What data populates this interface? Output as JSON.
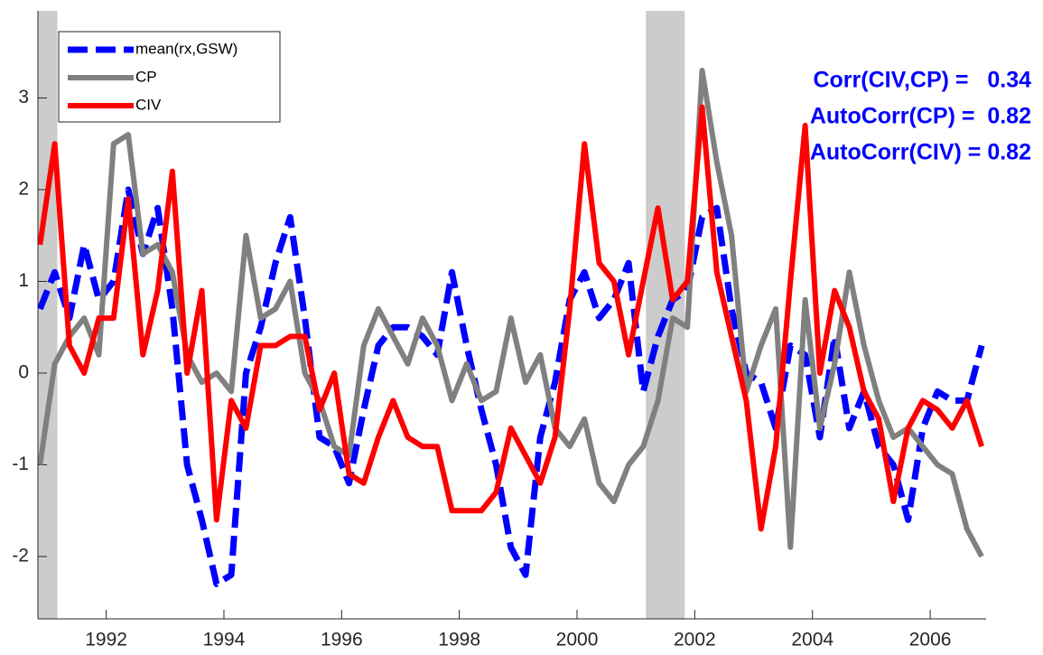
{
  "chart_data": {
    "type": "line",
    "x": [
      1990.875,
      1991.125,
      1991.375,
      1991.625,
      1991.875,
      1992.125,
      1992.375,
      1992.625,
      1992.875,
      1993.125,
      1993.375,
      1993.625,
      1993.875,
      1994.125,
      1994.375,
      1994.625,
      1994.875,
      1995.125,
      1995.375,
      1995.625,
      1995.875,
      1996.125,
      1996.375,
      1996.625,
      1996.875,
      1997.125,
      1997.375,
      1997.625,
      1997.875,
      1998.125,
      1998.375,
      1998.625,
      1998.875,
      1999.125,
      1999.375,
      1999.625,
      1999.875,
      2000.125,
      2000.375,
      2000.625,
      2000.875,
      2001.125,
      2001.375,
      2001.625,
      2001.875,
      2002.125,
      2002.375,
      2002.625,
      2002.875,
      2003.125,
      2003.375,
      2003.625,
      2003.875,
      2004.125,
      2004.375,
      2004.625,
      2004.875,
      2005.125,
      2005.375,
      2005.625,
      2005.875,
      2006.125,
      2006.375,
      2006.625,
      2006.875
    ],
    "series": [
      {
        "name": "mean(rx,GSW)",
        "color": "#0000ff",
        "dashed": true,
        "values": [
          0.7,
          1.1,
          0.6,
          1.4,
          0.8,
          1.0,
          2.0,
          1.3,
          1.8,
          0.7,
          -1.0,
          -1.6,
          -2.3,
          -2.2,
          0.0,
          0.5,
          1.2,
          1.7,
          0.6,
          -0.7,
          -0.8,
          -1.2,
          -0.4,
          0.3,
          0.5,
          0.5,
          0.4,
          0.2,
          1.1,
          0.3,
          -0.4,
          -1.0,
          -1.9,
          -2.2,
          -0.7,
          -0.1,
          0.8,
          1.1,
          0.6,
          0.8,
          1.2,
          -0.2,
          0.4,
          0.8,
          0.9,
          1.7,
          1.8,
          0.7,
          0.0,
          -0.1,
          -0.6,
          0.3,
          0.2,
          -0.7,
          0.4,
          -0.6,
          -0.2,
          -0.8,
          -1.0,
          -1.6,
          -0.6,
          -0.2,
          -0.3,
          -0.3,
          0.3
        ]
      },
      {
        "name": "CP",
        "color": "#808080",
        "dashed": false,
        "values": [
          -1.0,
          0.1,
          0.4,
          0.6,
          0.2,
          2.5,
          2.6,
          1.3,
          1.4,
          1.1,
          0.2,
          -0.1,
          0.0,
          -0.2,
          1.5,
          0.6,
          0.7,
          1.0,
          0.0,
          -0.3,
          -0.8,
          -0.9,
          0.3,
          0.7,
          0.4,
          0.1,
          0.6,
          0.3,
          -0.3,
          0.1,
          -0.3,
          -0.2,
          0.6,
          -0.1,
          0.2,
          -0.6,
          -0.8,
          -0.5,
          -1.2,
          -1.4,
          -1.0,
          -0.8,
          -0.3,
          0.6,
          0.5,
          3.3,
          2.3,
          1.5,
          -0.2,
          0.3,
          0.7,
          -1.9,
          0.8,
          -0.6,
          0.1,
          1.1,
          0.3,
          -0.3,
          -0.7,
          -0.6,
          -0.8,
          -1.0,
          -1.1,
          -1.7,
          -2.0
        ]
      },
      {
        "name": "CIV",
        "color": "#ff0000",
        "dashed": false,
        "values": [
          1.4,
          2.5,
          0.3,
          0.0,
          0.6,
          0.6,
          1.9,
          0.2,
          0.9,
          2.2,
          0.0,
          0.9,
          -1.6,
          -0.3,
          -0.6,
          0.3,
          0.3,
          0.4,
          0.4,
          -0.4,
          0.0,
          -1.1,
          -1.2,
          -0.7,
          -0.3,
          -0.7,
          -0.8,
          -0.8,
          -1.5,
          -1.5,
          -1.5,
          -1.3,
          -0.6,
          -0.9,
          -1.2,
          -0.7,
          0.7,
          2.5,
          1.2,
          1.0,
          0.2,
          1.0,
          1.8,
          0.8,
          1.0,
          2.9,
          1.1,
          0.4,
          -0.3,
          -1.7,
          -0.8,
          1.0,
          2.7,
          0.0,
          0.9,
          0.5,
          -0.2,
          -0.5,
          -1.4,
          -0.6,
          -0.3,
          -0.4,
          -0.6,
          -0.3,
          -0.8
        ]
      }
    ],
    "shaded_periods": [
      [
        1990.84,
        1991.17
      ],
      [
        2001.17,
        2001.83
      ]
    ],
    "xlim": [
      1990.84,
      2006.95
    ],
    "ylim": [
      -2.68,
      3.95
    ],
    "xticks": [
      1992,
      1994,
      1996,
      1998,
      2000,
      2002,
      2004,
      2006
    ],
    "yticks": [
      -2,
      -1,
      0,
      1,
      2,
      3
    ],
    "grid": false,
    "legend": "upper left",
    "annotations": [
      "Corr(CIV,CP) =   0.34",
      "AutoCorr(CP) =  0.82",
      "AutoCorr(CIV) = 0.82"
    ]
  }
}
